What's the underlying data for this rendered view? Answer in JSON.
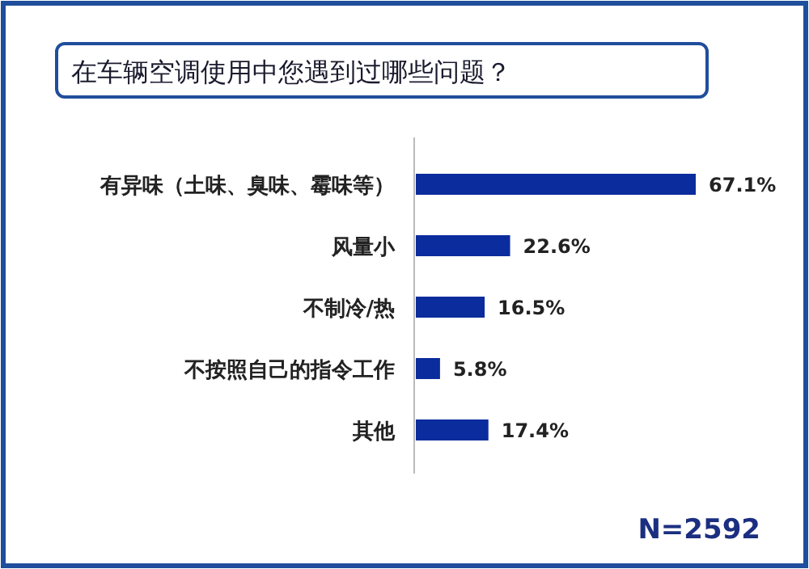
{
  "chart_data": {
    "type": "bar",
    "orientation": "horizontal",
    "title": "在车辆空调使用中您遇到过哪些问题？",
    "categories": [
      "有异味（土味、臭味、霉味等）",
      "风量小",
      "不制冷/热",
      "不按照自己的指令工作",
      "其他"
    ],
    "values": [
      67.1,
      22.6,
      16.5,
      5.8,
      17.4
    ],
    "value_labels": [
      "67.1%",
      "22.6%",
      "16.5%",
      "5.8%",
      "17.4%"
    ],
    "color": "#0b2c9c",
    "annotations": [
      "N=2592"
    ]
  }
}
